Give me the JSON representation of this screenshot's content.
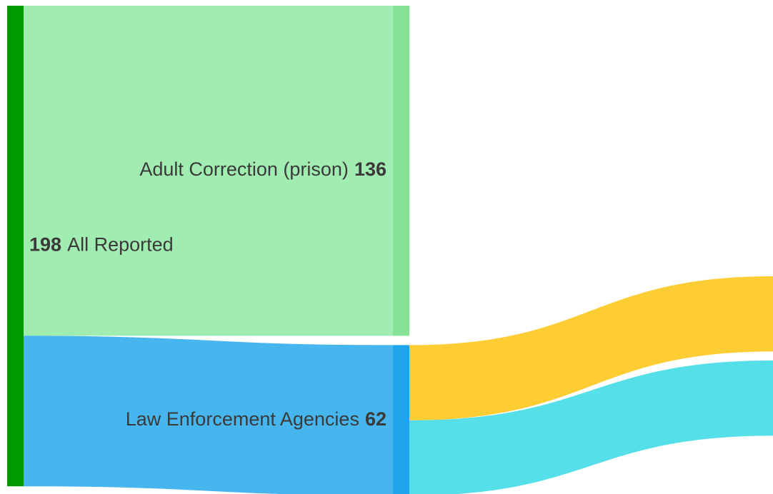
{
  "chart_data": {
    "type": "sankey",
    "nodes": [
      {
        "name": "All Reported",
        "value": 198,
        "color": "#009a00"
      },
      {
        "name": "Adult Correction (prison)",
        "value": 136,
        "color": "#86e395"
      },
      {
        "name": "Law Enforcement Agencies",
        "value": 62,
        "color": "#1ea5ec"
      }
    ],
    "links": [
      {
        "source": 0,
        "target": 1,
        "value": 136,
        "color": "#a1ecb0"
      },
      {
        "source": 0,
        "target": 2,
        "value": 62,
        "color": "#47b6ef"
      },
      {
        "source": 2,
        "value": 31,
        "color": "#fecc33"
      },
      {
        "source": 2,
        "value": 31,
        "color": "#55dfe9"
      }
    ]
  }
}
